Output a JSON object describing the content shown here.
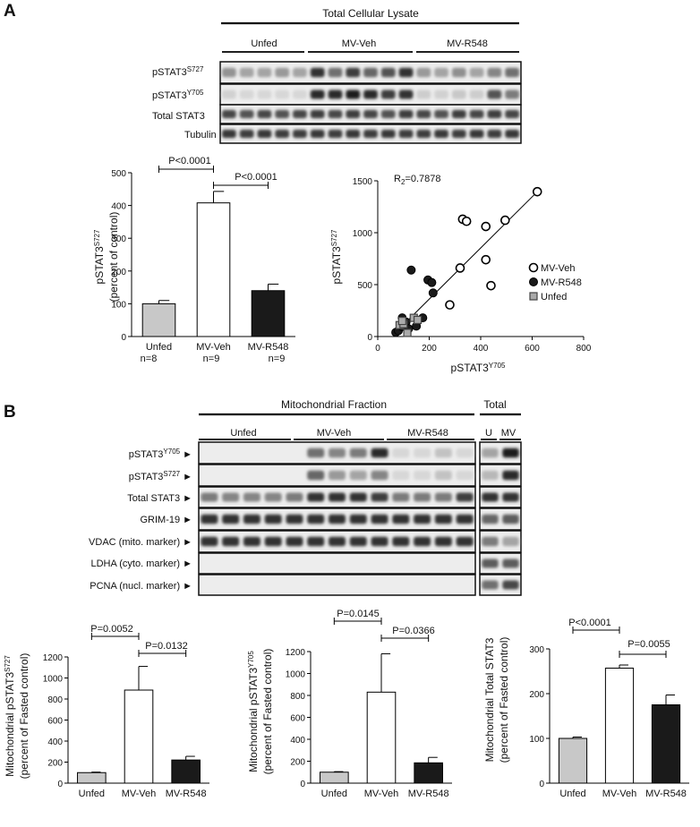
{
  "panel_a": {
    "label": "A",
    "blot": {
      "header": "Total Cellular Lysate",
      "groups": [
        "Unfed",
        "MV-Veh",
        "MV-R548"
      ],
      "rows": [
        {
          "base": "pSTAT3",
          "sup": "S727"
        },
        {
          "base": "pSTAT3",
          "sup": "Y705"
        },
        {
          "base": "Total STAT3",
          "sup": ""
        },
        {
          "base": "Tubulin",
          "sup": ""
        }
      ]
    },
    "bar": {
      "ylabel_base": "pSTAT3",
      "ylabel_sup": "S727",
      "ylabel_line2": "(percent of control)",
      "sig1": "P<0.0001",
      "sig2": "P<0.0001",
      "n_labels": [
        "n=8",
        "n=9",
        "n=9"
      ]
    },
    "scatter": {
      "annotation_prefix": "R",
      "annotation_sub": "2",
      "annotation_rest": "=0.7878",
      "xlabel_base": "pSTAT3",
      "xlabel_sup": "Y705",
      "ylabel_base": "pSTAT3",
      "ylabel_sup": "S727"
    }
  },
  "panel_b": {
    "label": "B",
    "blot": {
      "header_main": "Mitochondrial Fraction",
      "header_total": "Total",
      "groups": [
        "Unfed",
        "MV-Veh",
        "MV-R548"
      ],
      "total_lanes": [
        "U",
        "MV"
      ],
      "rows": [
        {
          "base": "pSTAT3",
          "sup": "Y705",
          "arrow": "►"
        },
        {
          "base": "pSTAT3",
          "sup": "S727",
          "arrow": "►"
        },
        {
          "base": "Total STAT3",
          "sup": "",
          "arrow": "►"
        },
        {
          "base": "GRIM-19",
          "sup": "",
          "arrow": "►"
        },
        {
          "base": "VDAC (mito. marker)",
          "sup": "",
          "arrow": "►"
        },
        {
          "base": "LDHA (cyto. marker)",
          "sup": "",
          "arrow": "►"
        },
        {
          "base": "PCNA (nucl. marker)",
          "sup": "",
          "arrow": "►"
        }
      ]
    },
    "charts": [
      {
        "ylabel_l1_base": "Mitochondrial pSTAT3",
        "ylabel_l1_sup": "S727",
        "ylabel_l2": "(percent of Fasted control)",
        "sig1": "P=0.0052",
        "sig2": "P=0.0132"
      },
      {
        "ylabel_l1_base": "Mitochondrial pSTAT3",
        "ylabel_l1_sup": "Y705",
        "ylabel_l2": "(percent of Fasted control)",
        "sig1": "P=0.0145",
        "sig2": "P=0.0366"
      },
      {
        "ylabel_l1_base": "Mitochondrial Total STAT3",
        "ylabel_l1_sup": "",
        "ylabel_l2": "(percent of Fasted control)",
        "sig1": "P<0.0001",
        "sig2": "P=0.0055"
      }
    ]
  },
  "colors": {
    "unfed": "#c8c8c8",
    "mv_veh": "#ffffff",
    "mv_r548": "#1a1a1a",
    "axis": "#000000"
  },
  "chart_data": [
    {
      "type": "bar",
      "categories": [
        "Unfed",
        "MV-Veh",
        "MV-R548"
      ],
      "values": [
        100,
        408,
        140
      ],
      "errors": [
        10,
        35,
        20
      ],
      "ylim": [
        0,
        500
      ],
      "yticks": [
        0,
        100,
        200,
        300,
        400,
        500
      ],
      "title": "",
      "xlabel": "",
      "ylabel": "pSTAT3S727 (percent of control)"
    },
    {
      "type": "scatter",
      "xlim": [
        0,
        800
      ],
      "ylim": [
        0,
        1500
      ],
      "xticks": [
        0,
        200,
        400,
        600,
        800
      ],
      "yticks": [
        0,
        500,
        1000,
        1500
      ],
      "legend": "right",
      "fit_line": {
        "x": [
          70,
          620
        ],
        "y": [
          40,
          1395
        ]
      },
      "series": [
        {
          "name": "MV-Veh",
          "marker": "open-circle",
          "x": [
            620,
            495,
            420,
            330,
            345,
            320,
            440,
            420,
            280
          ],
          "y": [
            1395,
            1120,
            1060,
            1130,
            1110,
            660,
            490,
            740,
            305
          ]
        },
        {
          "name": "MV-R548",
          "marker": "filled-circle",
          "x": [
            130,
            195,
            210,
            215,
            70,
            95,
            110,
            150,
            175,
            120,
            80,
            95
          ],
          "y": [
            640,
            545,
            520,
            420,
            40,
            180,
            140,
            100,
            180,
            75,
            55,
            95
          ]
        },
        {
          "name": "Unfed",
          "marker": "gray-square",
          "x": [
            85,
            100,
            140,
            155,
            115,
            95
          ],
          "y": [
            110,
            120,
            180,
            160,
            35,
            150
          ]
        }
      ]
    },
    {
      "type": "bar",
      "categories": [
        "Unfed",
        "MV-Veh",
        "MV-R548"
      ],
      "values": [
        100,
        885,
        220
      ],
      "errors": [
        5,
        225,
        35
      ],
      "ylim": [
        0,
        1200
      ],
      "yticks": [
        0,
        200,
        400,
        600,
        800,
        1000,
        1200
      ],
      "title": "",
      "xlabel": "",
      "ylabel": "Mitochondrial pSTAT3S727 (percent of Fasted control)"
    },
    {
      "type": "bar",
      "categories": [
        "Unfed",
        "MV-Veh",
        "MV-R548"
      ],
      "values": [
        100,
        830,
        185
      ],
      "errors": [
        5,
        350,
        50
      ],
      "ylim": [
        0,
        1200
      ],
      "yticks": [
        0,
        200,
        400,
        600,
        800,
        1000,
        1200
      ],
      "title": "",
      "xlabel": "",
      "ylabel": "Mitochondrial pSTAT3Y705 (percent of Fasted control)"
    },
    {
      "type": "bar",
      "categories": [
        "Unfed",
        "MV-Veh",
        "MV-R548"
      ],
      "values": [
        100,
        257,
        175
      ],
      "errors": [
        3,
        7,
        22
      ],
      "ylim": [
        0,
        300
      ],
      "yticks": [
        0,
        100,
        200,
        300
      ],
      "title": "",
      "xlabel": "",
      "ylabel": "Mitochondrial Total STAT3 (percent of Fasted control)"
    }
  ]
}
